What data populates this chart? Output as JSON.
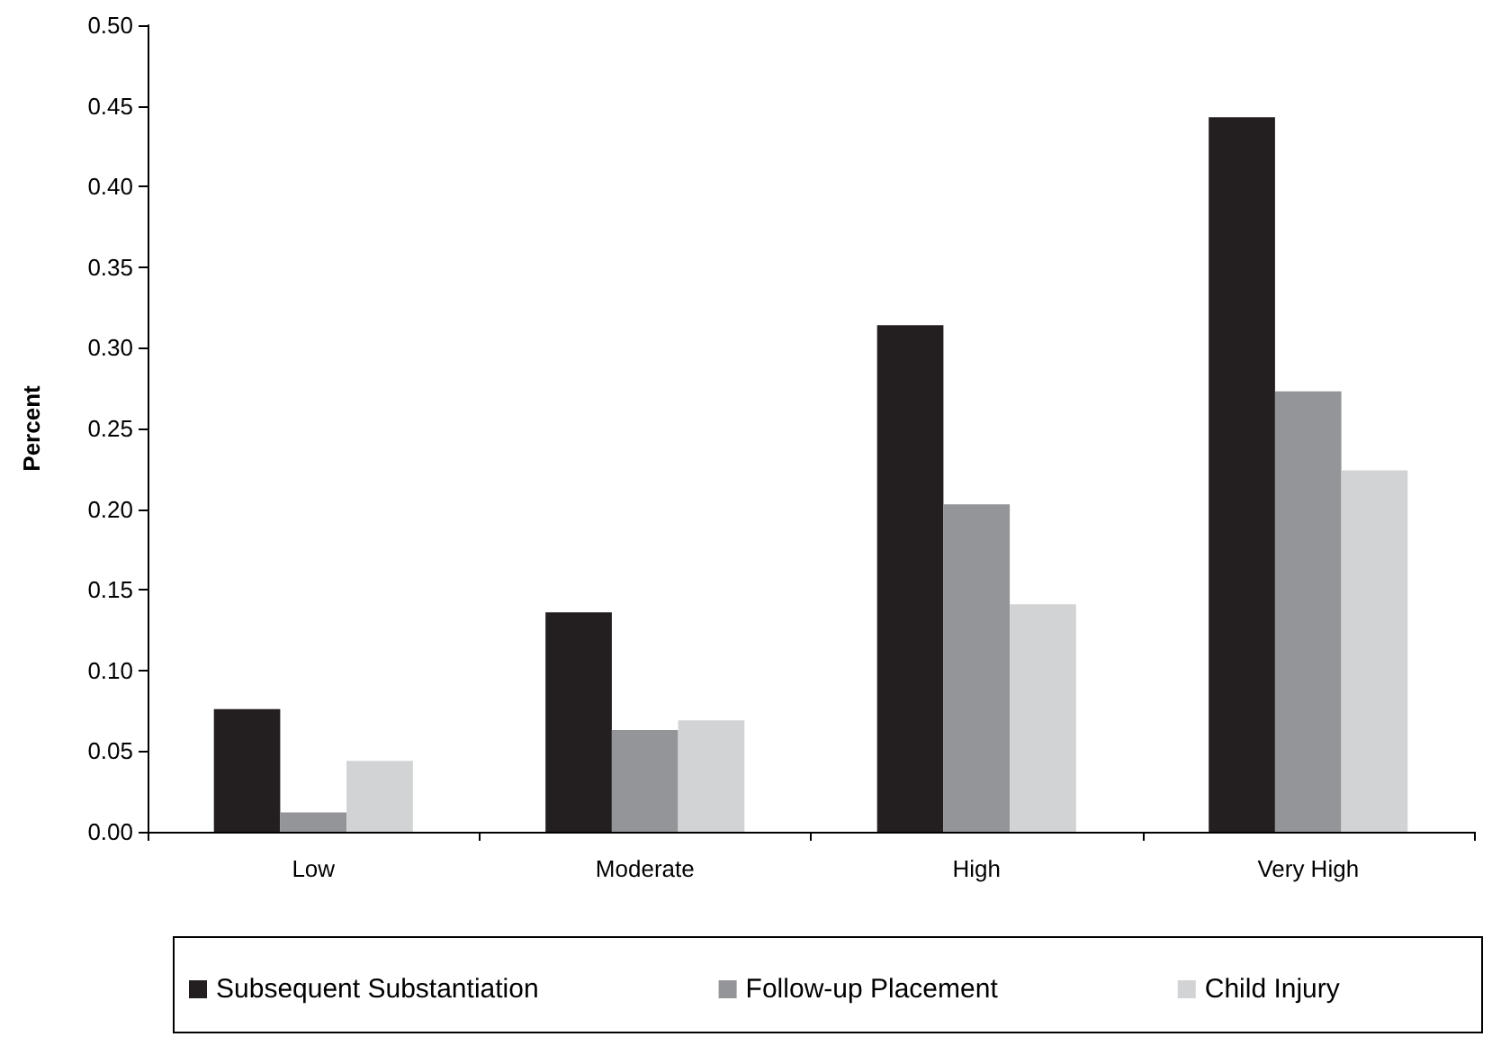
{
  "chart_data": {
    "type": "bar",
    "ylabel": "Percent",
    "categories": [
      "Low",
      "Moderate",
      "High",
      "Very High"
    ],
    "series": [
      {
        "name": "Subsequent Substantiation",
        "color": "#231f20",
        "values": [
          0.076,
          0.136,
          0.314,
          0.443
        ]
      },
      {
        "name": "Follow-up Placement",
        "color": "#939598",
        "values": [
          0.012,
          0.063,
          0.203,
          0.273
        ]
      },
      {
        "name": "Child Injury",
        "color": "#d1d3d4",
        "values": [
          0.044,
          0.069,
          0.141,
          0.224
        ]
      }
    ],
    "ylim": [
      0,
      0.5
    ],
    "yticks": [
      {
        "value": 0,
        "label": "0.00"
      },
      {
        "value": 0.05,
        "label": "0.05"
      },
      {
        "value": 0.1,
        "label": "0.10"
      },
      {
        "value": 0.15,
        "label": "0.15"
      },
      {
        "value": 0.2,
        "label": "0.20"
      },
      {
        "value": 0.25,
        "label": "0.25"
      },
      {
        "value": 0.3,
        "label": "0.30"
      },
      {
        "value": 0.35,
        "label": "0.35"
      },
      {
        "value": 0.4,
        "label": "0.40"
      },
      {
        "value": 0.45,
        "label": "0.45"
      },
      {
        "value": 0.5,
        "label": "0.50"
      }
    ],
    "grid": false,
    "legend": "bottom"
  }
}
